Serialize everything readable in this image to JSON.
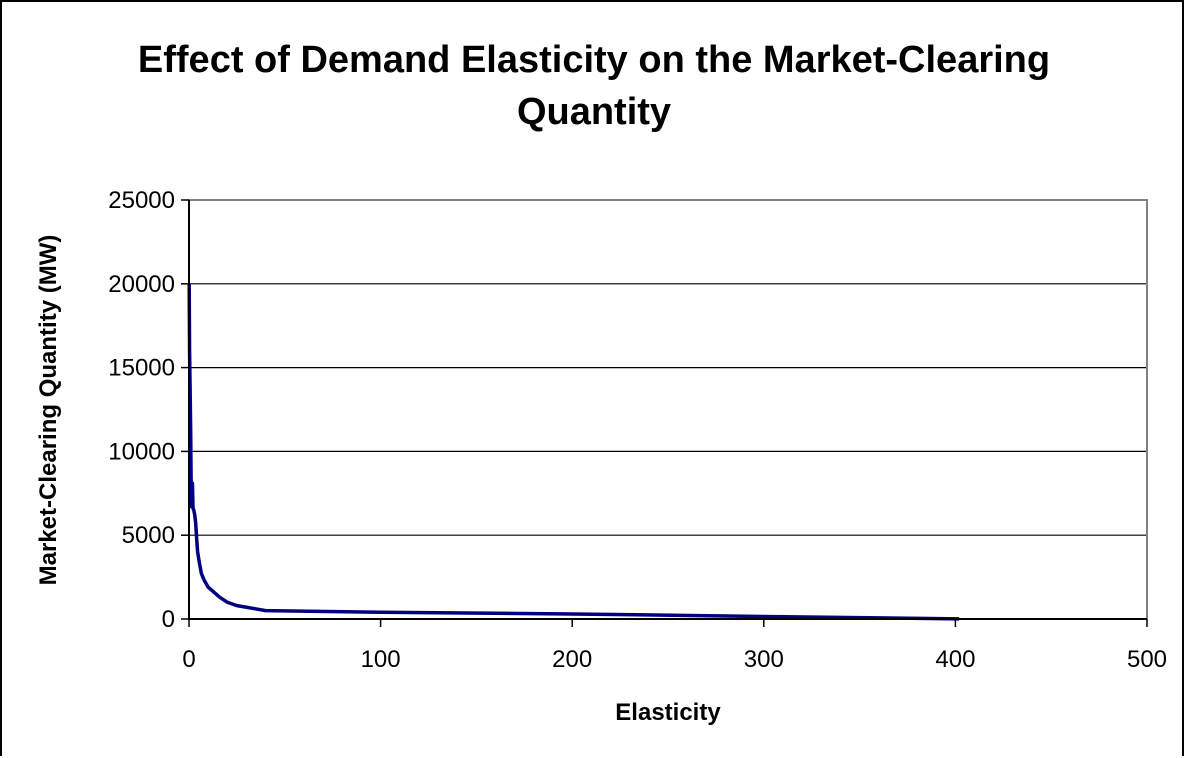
{
  "chart_data": {
    "type": "line",
    "title_line1": "Effect of Demand Elasticity on the Market-Clearing",
    "title_line2": "Quantity",
    "xlabel": "Elasticity",
    "ylabel": "Market-Clearing Quantity (MW)",
    "xlim": [
      0,
      500
    ],
    "ylim": [
      0,
      25000
    ],
    "x_ticks": [
      0,
      100,
      200,
      300,
      400,
      500
    ],
    "y_ticks": [
      0,
      5000,
      10000,
      15000,
      20000,
      25000
    ],
    "grid": "horizontal",
    "legend": "none",
    "series": [
      {
        "color": "#000080",
        "points": [
          [
            0.1,
            20000
          ],
          [
            0.3,
            16000
          ],
          [
            0.6,
            13600
          ],
          [
            0.9,
            11000
          ],
          [
            1.1,
            8200
          ],
          [
            1.4,
            6700
          ],
          [
            1.8,
            8100
          ],
          [
            2.1,
            6600
          ],
          [
            2.5,
            6500
          ],
          [
            3.0,
            6200
          ],
          [
            3.5,
            5700
          ],
          [
            4.0,
            4800
          ],
          [
            4.5,
            4000
          ],
          [
            5.5,
            3300
          ],
          [
            6.5,
            2700
          ],
          [
            8,
            2300
          ],
          [
            10,
            1900
          ],
          [
            13,
            1600
          ],
          [
            16,
            1300
          ],
          [
            20,
            1000
          ],
          [
            25,
            800
          ],
          [
            30,
            700
          ],
          [
            35,
            600
          ],
          [
            40,
            500
          ],
          [
            100,
            400
          ],
          [
            200,
            300
          ],
          [
            300,
            150
          ],
          [
            402,
            10
          ]
        ]
      }
    ]
  }
}
